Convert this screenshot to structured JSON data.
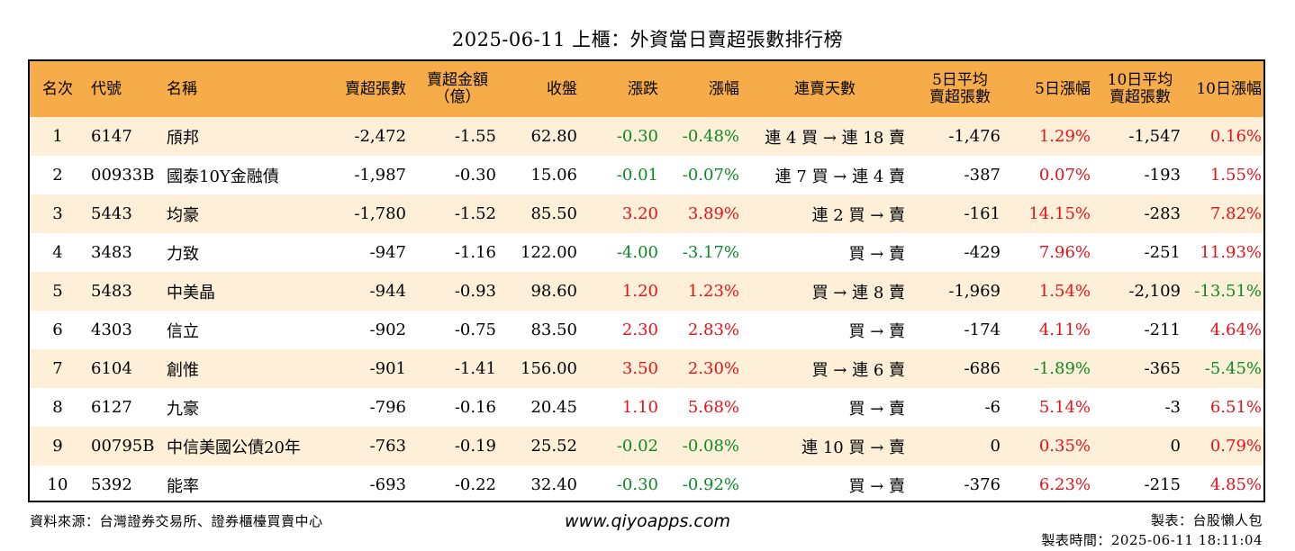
{
  "title": "2025-06-11 上櫃：外資當日賣超張數排行榜",
  "headers": {
    "rank": "名次",
    "code": "代號",
    "name": "名稱",
    "sell_shares": "賣超張數",
    "sell_amount_1": "賣超金額",
    "sell_amount_2": "（億）",
    "close": "收盤",
    "change": "漲跌",
    "change_pct": "漲幅",
    "streak": "連賣天數",
    "avg5_1": "5日平均",
    "avg5_2": "賣超張數",
    "pct5": "5日漲幅",
    "avg10_1": "10日平均",
    "avg10_2": "賣超張數",
    "pct10": "10日漲幅"
  },
  "rows": [
    {
      "rank": "1",
      "code": "6147",
      "name": "頎邦",
      "sell_shares": "-2,472",
      "sell_amount": "-1.55",
      "close": "62.80",
      "change": "-0.30",
      "change_pct": "-0.48%",
      "streak": "連 4 買 → 連 18 賣",
      "avg5": "-1,476",
      "pct5": "1.29%",
      "avg10": "-1,547",
      "pct10": "0.16%"
    },
    {
      "rank": "2",
      "code": "00933B",
      "name": "國泰10Y金融債",
      "sell_shares": "-1,987",
      "sell_amount": "-0.30",
      "close": "15.06",
      "change": "-0.01",
      "change_pct": "-0.07%",
      "streak": "連 7 買 → 連 4 賣",
      "avg5": "-387",
      "pct5": "0.07%",
      "avg10": "-193",
      "pct10": "1.55%"
    },
    {
      "rank": "3",
      "code": "5443",
      "name": "均豪",
      "sell_shares": "-1,780",
      "sell_amount": "-1.52",
      "close": "85.50",
      "change": "3.20",
      "change_pct": "3.89%",
      "streak": "連 2 買 → 賣",
      "avg5": "-161",
      "pct5": "14.15%",
      "avg10": "-283",
      "pct10": "7.82%"
    },
    {
      "rank": "4",
      "code": "3483",
      "name": "力致",
      "sell_shares": "-947",
      "sell_amount": "-1.16",
      "close": "122.00",
      "change": "-4.00",
      "change_pct": "-3.17%",
      "streak": "買 → 賣",
      "avg5": "-429",
      "pct5": "7.96%",
      "avg10": "-251",
      "pct10": "11.93%"
    },
    {
      "rank": "5",
      "code": "5483",
      "name": "中美晶",
      "sell_shares": "-944",
      "sell_amount": "-0.93",
      "close": "98.60",
      "change": "1.20",
      "change_pct": "1.23%",
      "streak": "買 → 連 8 賣",
      "avg5": "-1,969",
      "pct5": "1.54%",
      "avg10": "-2,109",
      "pct10": "-13.51%"
    },
    {
      "rank": "6",
      "code": "4303",
      "name": "信立",
      "sell_shares": "-902",
      "sell_amount": "-0.75",
      "close": "83.50",
      "change": "2.30",
      "change_pct": "2.83%",
      "streak": "買 → 賣",
      "avg5": "-174",
      "pct5": "4.11%",
      "avg10": "-211",
      "pct10": "4.64%"
    },
    {
      "rank": "7",
      "code": "6104",
      "name": "創惟",
      "sell_shares": "-901",
      "sell_amount": "-1.41",
      "close": "156.00",
      "change": "3.50",
      "change_pct": "2.30%",
      "streak": "買 → 連 6 賣",
      "avg5": "-686",
      "pct5": "-1.89%",
      "avg10": "-365",
      "pct10": "-5.45%"
    },
    {
      "rank": "8",
      "code": "6127",
      "name": "九豪",
      "sell_shares": "-796",
      "sell_amount": "-0.16",
      "close": "20.45",
      "change": "1.10",
      "change_pct": "5.68%",
      "streak": "買 → 賣",
      "avg5": "-6",
      "pct5": "5.14%",
      "avg10": "-3",
      "pct10": "6.51%"
    },
    {
      "rank": "9",
      "code": "00795B",
      "name": "中信美國公債20年",
      "sell_shares": "-763",
      "sell_amount": "-0.19",
      "close": "25.52",
      "change": "-0.02",
      "change_pct": "-0.08%",
      "streak": "連 10 買 → 賣",
      "avg5": "0",
      "pct5": "0.35%",
      "avg10": "0",
      "pct10": "0.79%"
    },
    {
      "rank": "10",
      "code": "5392",
      "name": "能率",
      "sell_shares": "-693",
      "sell_amount": "-0.22",
      "close": "32.40",
      "change": "-0.30",
      "change_pct": "-0.92%",
      "streak": "買 → 賣",
      "avg5": "-376",
      "pct5": "6.23%",
      "avg10": "-215",
      "pct10": "4.85%"
    }
  ],
  "colors": {
    "header_bg": "#f5ac49",
    "odd_row_bg": "#fdefd8",
    "positive": "#e5121a",
    "negative": "#0c8a26"
  },
  "footer": {
    "source": "資料來源：台灣證券交易所、證券櫃檯買賣中心",
    "website": "www.qiyoapps.com",
    "author": "製表：台股懶人包",
    "generated": "製表時間：2025-06-11 18:11:04"
  }
}
